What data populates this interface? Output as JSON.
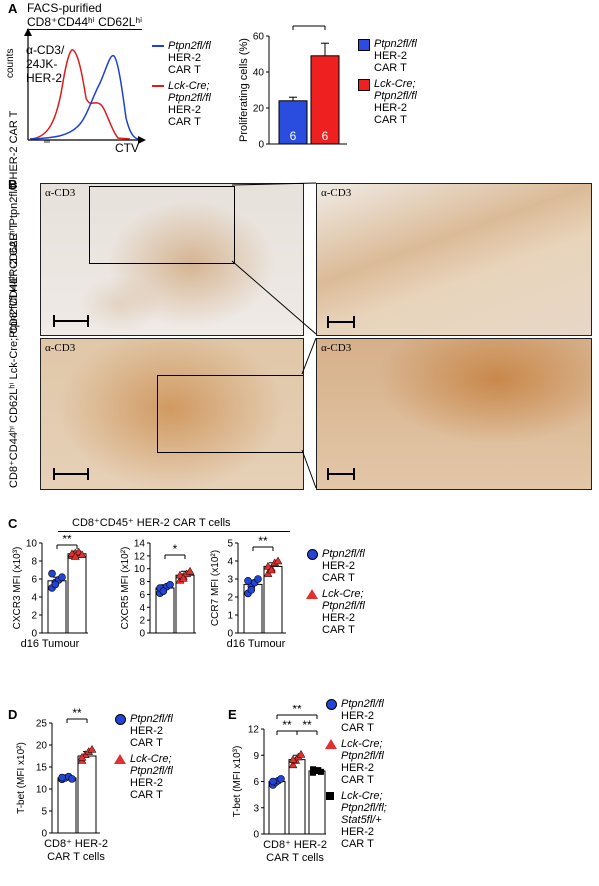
{
  "panel_A": {
    "letter": "A",
    "header_line1": "FACS-purified",
    "header_line2": "CD8⁺CD44ʰⁱ CD62Lʰⁱ",
    "hist_inset": "α-CD3/\n24JK-\nHER-2",
    "hist_ylabel": "counts",
    "hist_xlabel": "CTV",
    "legend": [
      {
        "line1": "Ptpn2fl/fl",
        "line2": "HER-2",
        "line3": "CAR T",
        "line4": "",
        "color": "#1f3fd6"
      },
      {
        "line1": "Lck-Cre;",
        "line2": "Ptpn2fl/fl",
        "line3": "HER-2",
        "line4": "CAR T",
        "color": "#e01b1b"
      }
    ],
    "bar_legend": [
      {
        "line1": "Ptpn2fl/fl",
        "line2": "HER-2",
        "line3": "CAR T",
        "line4": "",
        "color": "#2a4de0"
      },
      {
        "line1": "Lck-Cre;",
        "line2": "Ptpn2fl/fl",
        "line3": "HER-2",
        "line4": "CAR T",
        "color": "#ee2020"
      }
    ]
  },
  "panel_B": {
    "letter": "B",
    "tag": "α-CD3",
    "row1_label": "CD8⁺CD44ʰⁱ CD62Lʰⁱ Ptpn2fl/fl HER-2 CAR T",
    "row2_label": "CD8⁺CD44ʰⁱ CD62Lʰⁱ Lck-Cre;Ptpn2fl/fl HER-2 CAR T"
  },
  "panel_C": {
    "letter": "C",
    "header": "CD8⁺CD45⁺ HER-2 CAR T cells",
    "legend": [
      {
        "line1": "Ptpn2fl/fl",
        "line2": "HER-2",
        "line3": "CAR T",
        "line4": "",
        "shape": "circle"
      },
      {
        "line1": "Lck-Cre;",
        "line2": "Ptpn2fl/fl",
        "line3": "HER-2",
        "line4": "CAR T",
        "shape": "triangle"
      }
    ]
  },
  "panel_D": {
    "letter": "D",
    "legend": [
      {
        "line1": "Ptpn2fl/fl",
        "line2": "HER-2",
        "line3": "CAR T",
        "line4": "",
        "shape": "circle"
      },
      {
        "line1": "Lck-Cre;",
        "line2": "Ptpn2fl/fl",
        "line3": "HER-2",
        "line4": "CAR T",
        "shape": "triangle"
      }
    ]
  },
  "panel_E": {
    "letter": "E",
    "legend": [
      {
        "line1": "Ptpn2fl/fl",
        "line2": "HER-2",
        "line3": "CAR T",
        "line4": "",
        "line5": "",
        "shape": "circle"
      },
      {
        "line1": "Lck-Cre;",
        "line2": "Ptpn2fl/fl",
        "line3": "HER-2",
        "line4": "CAR T",
        "line5": "",
        "shape": "triangle"
      },
      {
        "line1": "Lck-Cre;",
        "line2": "Ptpn2fl/fl;",
        "line3": "Stat5fl/+",
        "line4": "HER-2",
        "line5": "CAR T",
        "shape": "square"
      }
    ]
  },
  "chart_data": [
    {
      "type": "bar",
      "panel": "A",
      "ylabel": "Proliferating cells (%)",
      "ylim": [
        0,
        60
      ],
      "yticks": [
        0,
        20,
        40,
        60
      ],
      "categories": [
        "Ptpn2fl/fl",
        "Lck-Cre;Ptpn2fl/fl"
      ],
      "values": [
        24,
        49
      ],
      "errors": [
        2,
        7
      ],
      "n_labels": [
        "6",
        "6"
      ],
      "colors": [
        "#2a4de0",
        "#ee2020"
      ],
      "significance": "**"
    },
    {
      "type": "bar",
      "panel": "C",
      "ylabel": "CXCR3 MFI (x10³)",
      "xlabel": "d16 Tumour",
      "ylim": [
        0,
        10
      ],
      "yticks": [
        0,
        2,
        4,
        6,
        8,
        10
      ],
      "values": [
        5.8,
        8.8
      ],
      "errors": [
        0.4,
        0.3
      ],
      "significance": "**",
      "points": [
        [
          5.0,
          5.6,
          5.9,
          6.2,
          6.6,
          5.4
        ],
        [
          8.6,
          8.9,
          9.0,
          8.7,
          8.8,
          8.5
        ]
      ]
    },
    {
      "type": "bar",
      "panel": "C",
      "ylabel": "CXCR5 MFI (x10²)",
      "xlabel": "",
      "ylim": [
        0,
        14
      ],
      "yticks": [
        0,
        2,
        4,
        6,
        8,
        10,
        12,
        14
      ],
      "values": [
        7.0,
        9.0
      ],
      "errors": [
        0.5,
        0.6
      ],
      "significance": "*",
      "points": [
        [
          6.2,
          6.8,
          7.2,
          7.5,
          7.0,
          6.5
        ],
        [
          8.2,
          8.8,
          9.2,
          9.6,
          9.0,
          8.5
        ]
      ]
    },
    {
      "type": "bar",
      "panel": "C",
      "ylabel": "CCR7 MFI (x10²)",
      "xlabel": "d16 Tumour",
      "ylim": [
        0,
        5
      ],
      "yticks": [
        0,
        1,
        2,
        3,
        4,
        5
      ],
      "values": [
        2.7,
        3.7
      ],
      "errors": [
        0.2,
        0.2
      ],
      "significance": "**",
      "points": [
        [
          2.2,
          2.6,
          2.8,
          3.0,
          2.9,
          2.4
        ],
        [
          3.3,
          3.6,
          3.9,
          4.0,
          3.7,
          3.5
        ]
      ]
    },
    {
      "type": "bar",
      "panel": "D",
      "ylabel": "T-bet (MFI x10²)",
      "xlabel": "CD8⁺ HER-2 CAR T cells",
      "ylim": [
        0,
        25
      ],
      "yticks": [
        0,
        5,
        10,
        15,
        20,
        25
      ],
      "values": [
        12.5,
        17.5
      ],
      "errors": [
        0.3,
        1.0
      ],
      "significance": "**",
      "points": [
        [
          12.2,
          12.5,
          12.8,
          12.3,
          12.6
        ],
        [
          16.5,
          17.8,
          18.5,
          19.0,
          17.2
        ]
      ]
    },
    {
      "type": "bar",
      "panel": "E",
      "ylabel": "T-bet (MFI x10³)",
      "xlabel": "CD8⁺ HER-2 CAR T cells",
      "ylim": [
        0,
        12
      ],
      "yticks": [
        0,
        3,
        6,
        9,
        12
      ],
      "values": [
        6.0,
        8.5,
        7.2
      ],
      "errors": [
        0.3,
        0.5,
        0.2
      ],
      "significance": [
        {
          "from": 0,
          "to": 1,
          "label": "**"
        },
        {
          "from": 1,
          "to": 2,
          "label": "**"
        },
        {
          "from": 0,
          "to": 2,
          "label": "**"
        }
      ],
      "points": [
        [
          5.6,
          5.9,
          6.1,
          6.3,
          6.0
        ],
        [
          7.9,
          8.4,
          8.8,
          9.1,
          8.5
        ],
        [
          7.0,
          7.2,
          7.3,
          7.1,
          7.4
        ]
      ]
    }
  ]
}
